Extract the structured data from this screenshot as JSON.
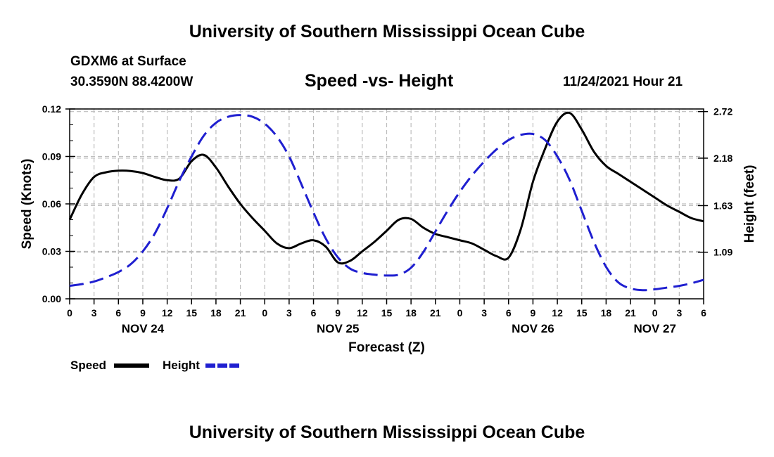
{
  "header": {
    "title": "University of Southern Mississippi Ocean Cube",
    "station": "GDXM6 at Surface",
    "coords": "30.3590N  88.4200W",
    "subtitle": "Speed -vs- Height",
    "datetime": "11/24/2021 Hour 21"
  },
  "footer": {
    "title": "University of Southern Mississippi Ocean Cube"
  },
  "legend": {
    "speed_label": "Speed",
    "height_label": "Height"
  },
  "colors": {
    "speed": "#000000",
    "height": "#1f1fd0",
    "grid": "#bdbdbd"
  },
  "chart_data": {
    "type": "line",
    "title": "Speed -vs- Height",
    "xlabel": "Forecast (Z)",
    "ylabel": "Speed (Knots)",
    "y2label": "Height (feet)",
    "x_unit": "hours from NOV 24 00Z",
    "xlim": [
      0,
      78
    ],
    "ylim": [
      0,
      0.12
    ],
    "y2lim": [
      0.55,
      2.75
    ],
    "x_ticks": [
      0,
      3,
      6,
      9,
      12,
      15,
      18,
      21,
      24,
      27,
      30,
      33,
      36,
      39,
      42,
      45,
      48,
      51,
      54,
      57,
      60,
      63,
      66,
      69,
      72,
      75,
      78
    ],
    "x_tick_labels": [
      "0",
      "3",
      "6",
      "9",
      "12",
      "15",
      "18",
      "21",
      "0",
      "3",
      "6",
      "9",
      "12",
      "15",
      "18",
      "21",
      "0",
      "3",
      "6",
      "9",
      "12",
      "15",
      "18",
      "21",
      "0",
      "3",
      "6"
    ],
    "date_labels": [
      {
        "x": 9,
        "label": "NOV 24"
      },
      {
        "x": 33,
        "label": "NOV 25"
      },
      {
        "x": 57,
        "label": "NOV 26"
      },
      {
        "x": 72,
        "label": "NOV 27"
      }
    ],
    "y_ticks": [
      0.0,
      0.03,
      0.06,
      0.09,
      0.12
    ],
    "y_tick_labels": [
      "0.00",
      "0.03",
      "0.06",
      "0.09",
      "0.12"
    ],
    "y2_ticks": [
      1.09,
      1.63,
      2.18,
      2.72
    ],
    "y2_tick_labels": [
      "1.09",
      "1.63",
      "2.18",
      "2.72"
    ],
    "series": [
      {
        "name": "Speed",
        "axis": "left",
        "style": "solid",
        "x": [
          0,
          1.5,
          3,
          4.5,
          6,
          7.5,
          9,
          10.5,
          12,
          13.5,
          15,
          16.5,
          18,
          19.5,
          21,
          22.5,
          24,
          25.5,
          27,
          28.5,
          30,
          31.5,
          33,
          34.5,
          36,
          37.5,
          39,
          40.5,
          42,
          43.5,
          45,
          46.5,
          48,
          49.5,
          51,
          52.5,
          54,
          55.5,
          57,
          58.5,
          60,
          61.5,
          63,
          64.5,
          66,
          67.5,
          69,
          70.5,
          72,
          73.5,
          75,
          76.5,
          78
        ],
        "values": [
          0.05,
          0.066,
          0.077,
          0.08,
          0.081,
          0.0808,
          0.0795,
          0.077,
          0.075,
          0.076,
          0.087,
          0.091,
          0.083,
          0.071,
          0.06,
          0.051,
          0.043,
          0.035,
          0.032,
          0.035,
          0.037,
          0.033,
          0.023,
          0.024,
          0.03,
          0.036,
          0.043,
          0.05,
          0.0505,
          0.045,
          0.041,
          0.039,
          0.037,
          0.035,
          0.031,
          0.027,
          0.026,
          0.044,
          0.074,
          0.095,
          0.112,
          0.1175,
          0.107,
          0.093,
          0.084,
          0.079,
          0.074,
          0.069,
          0.064,
          0.059,
          0.055,
          0.051,
          0.049
        ]
      },
      {
        "name": "Height",
        "axis": "right",
        "style": "dashed",
        "x": [
          0,
          1.5,
          3,
          4.5,
          6,
          7.5,
          9,
          10.5,
          12,
          13.5,
          15,
          16.5,
          18,
          19.5,
          21,
          22.5,
          24,
          25.5,
          27,
          28.5,
          30,
          31.5,
          33,
          34.5,
          36,
          37.5,
          39,
          40.5,
          42,
          43.5,
          45,
          46.5,
          48,
          49.5,
          51,
          52.5,
          54,
          55.5,
          57,
          58.5,
          60,
          61.5,
          63,
          64.5,
          66,
          67.5,
          69,
          70.5,
          72,
          73.5,
          75,
          76.5,
          78
        ],
        "values": [
          0.7,
          0.72,
          0.75,
          0.8,
          0.86,
          0.95,
          1.1,
          1.31,
          1.6,
          1.92,
          2.2,
          2.44,
          2.59,
          2.66,
          2.68,
          2.66,
          2.58,
          2.43,
          2.2,
          1.88,
          1.55,
          1.25,
          1.03,
          0.9,
          0.85,
          0.83,
          0.82,
          0.83,
          0.91,
          1.09,
          1.33,
          1.57,
          1.79,
          1.98,
          2.14,
          2.28,
          2.39,
          2.45,
          2.46,
          2.39,
          2.2,
          1.93,
          1.57,
          1.21,
          0.92,
          0.74,
          0.67,
          0.65,
          0.66,
          0.68,
          0.7,
          0.73,
          0.77
        ]
      }
    ]
  }
}
